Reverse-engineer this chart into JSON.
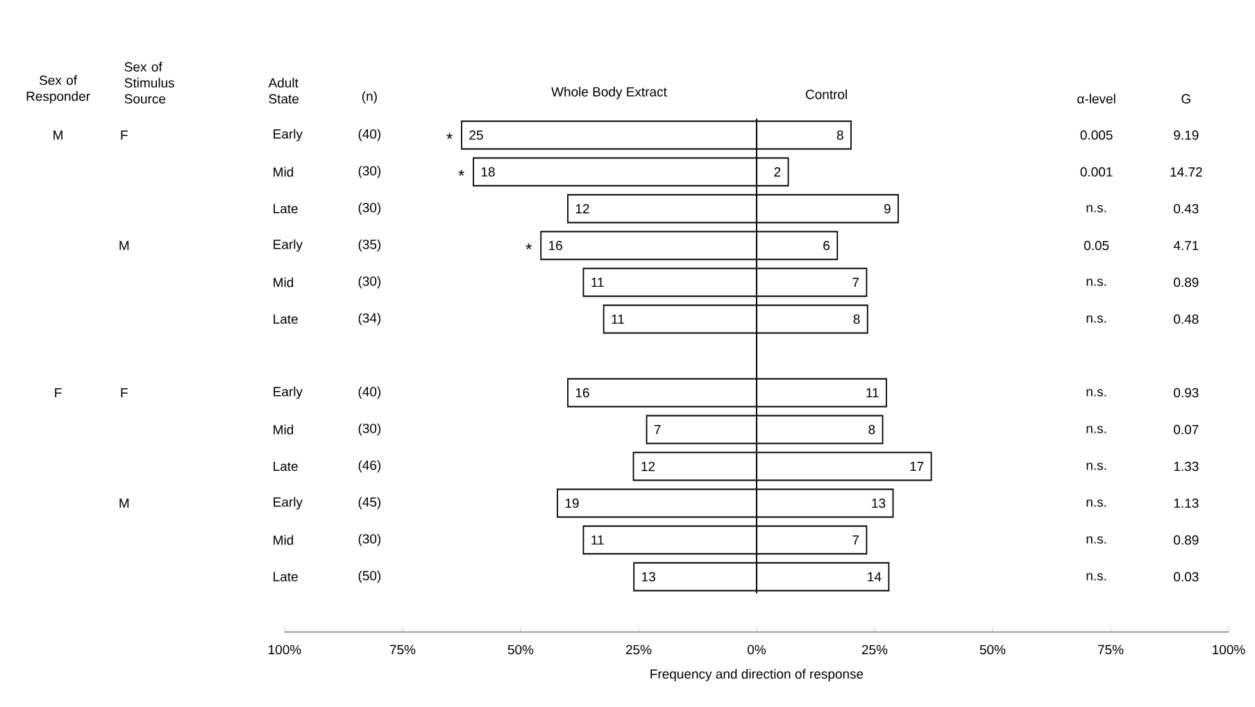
{
  "chart_data": {
    "type": "bar",
    "orientation": "horizontal",
    "stacked": true,
    "xlabel": "Frequency and direction of response",
    "ylabel": "Adult State",
    "categories": [
      "Early",
      "Mid",
      "Late",
      "Early",
      "Mid",
      "Late",
      null,
      "Early",
      "Mid",
      "Late",
      "Early",
      "Mid",
      "Late"
    ],
    "series": [
      {
        "name": "Whole Body Extract",
        "color": "#ffffff",
        "values": [
          -62.5,
          -60.0,
          -40.0,
          -45.7,
          -36.7,
          -32.4,
          null,
          -40.0,
          -23.3,
          -26.1,
          -42.2,
          -36.7,
          -26.0
        ]
      },
      {
        "name": "Control",
        "color": "#ffffff",
        "values": [
          20.0,
          6.7,
          30.0,
          17.1,
          23.3,
          23.5,
          null,
          27.5,
          26.7,
          37.0,
          28.9,
          23.3,
          28.0
        ]
      }
    ],
    "xlim": [
      -100,
      100
    ],
    "xticks": [
      {
        "value": -100,
        "label": "100%"
      },
      {
        "value": -75,
        "label": "75%"
      },
      {
        "value": -50,
        "label": "50%"
      },
      {
        "value": -25,
        "label": "25%"
      },
      {
        "value": 0,
        "label": "0%"
      },
      {
        "value": 25,
        "label": "25%"
      },
      {
        "value": 50,
        "label": "50%"
      },
      {
        "value": 75,
        "label": "75%"
      },
      {
        "value": 100,
        "label": "100%"
      }
    ],
    "ref_lines": [
      {
        "axis": "x",
        "value": 0
      }
    ],
    "annotations": [
      "Sex of Responder",
      "Sex of Stimulus Source",
      "(n)",
      "α-level",
      "G",
      "M",
      "F",
      "F",
      "M",
      "F",
      "M",
      "(40)",
      "0.005",
      "9.19",
      "(30)",
      "0.001",
      "14.72",
      "(30)",
      "n.s.",
      "0.43",
      "(35)",
      "0.05",
      "4.71",
      "(30)",
      "n.s.",
      "0.89",
      "(34)",
      "n.s.",
      "0.48",
      "(40)",
      "n.s.",
      "0.93",
      "(30)",
      "n.s.",
      "0.07",
      "(46)",
      "n.s.",
      "1.33",
      "(45)",
      "n.s.",
      "1.13",
      "(30)",
      "n.s.",
      "0.89",
      "(50)",
      "n.s.",
      "0.03",
      "*",
      "*",
      "*",
      "25",
      "18",
      "12",
      "16",
      "11",
      "11",
      "16",
      "7",
      "12",
      "19",
      "11",
      "13",
      "8",
      "2",
      "9",
      "6",
      "7",
      "8",
      "11",
      "8",
      "17",
      "13",
      "7",
      "14"
    ]
  }
}
